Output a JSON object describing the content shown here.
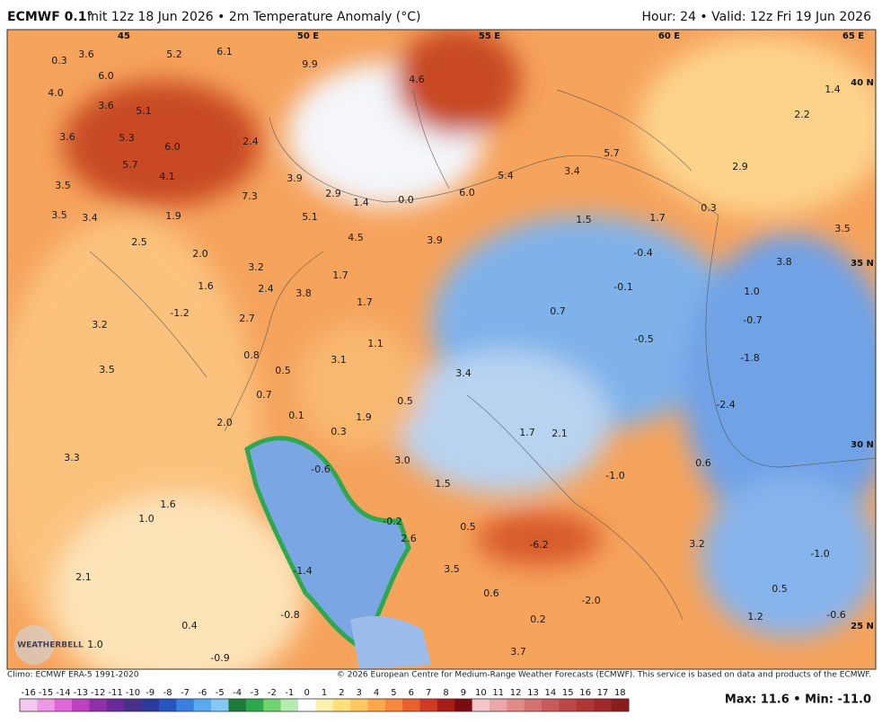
{
  "header": {
    "model": "ECMWF 0.1°",
    "title": "Init 12z 18 Jun 2026 • 2m Temperature Anomaly (°C)",
    "valid": "Hour: 24 • Valid: 12z Fri 19 Jun 2026"
  },
  "map": {
    "grid_labels": [
      "45",
      "50 E",
      "55 E",
      "60 E",
      "65 E",
      "40 N",
      "35 N",
      "30 N",
      "25 N"
    ],
    "values": [
      "0.3",
      "3.6",
      "6.0",
      "4.0",
      "5.2",
      "6.1",
      "9.9",
      "4.6",
      "3.6",
      "5.1",
      "3.6",
      "5.3",
      "6.0",
      "2.4",
      "5.7",
      "4.1",
      "3.5",
      "3.9",
      "2.9",
      "1.4",
      "0.0",
      "6.0",
      "5.4",
      "3.4",
      "5.7",
      "7.3",
      "3.5",
      "3.4",
      "1.9",
      "5.1",
      "4.5",
      "3.9",
      "1.5",
      "1.7",
      "0.3",
      "2.9",
      "2.2",
      "1.4",
      "3.5",
      "2.5",
      "2.0",
      "3.2",
      "1.7",
      "-0.4",
      "3.8",
      "1.6",
      "2.4",
      "3.8",
      "1.7",
      "-0.1",
      "1.0",
      "-1.2",
      "2.7",
      "0.7",
      "-0.7",
      "3.2",
      "1.1",
      "-0.5",
      "0.8",
      "3.1",
      "-1.8",
      "3.5",
      "0.5",
      "3.4",
      "0.7",
      "0.5",
      "-2.4",
      "2.0",
      "0.1",
      "1.9",
      "0.3",
      "1.7",
      "2.1",
      "3.3",
      "3.0",
      "0.6",
      "-0.6",
      "-1.0",
      "1.5",
      "1.6",
      "1.0",
      "-0.2",
      "0.5",
      "2.6",
      "3.2",
      "-6.2",
      "-1.0",
      "3.5",
      "-1.4",
      "2.1",
      "0.6",
      "0.5",
      "-2.0",
      "-0.8",
      "0.2",
      "0.4",
      "1.0",
      "-0.9",
      "3.7",
      "1.2",
      "-0.6"
    ]
  },
  "footer": {
    "climo": "Climo: ECMWF ERA-5 1991-2020",
    "credit": "© 2026 European Centre for Medium-Range Weather Forecasts (ECMWF). This service is based on data and products of the ECMWF.",
    "watermark": "WEATHERBELL"
  },
  "colorbar": {
    "ticks": [
      -16,
      -15,
      -14,
      -13,
      -12,
      -11,
      -10,
      -9,
      -8,
      -7,
      -6,
      -5,
      -4,
      -3,
      -2,
      -1,
      0,
      1,
      2,
      3,
      4,
      5,
      6,
      7,
      8,
      9,
      10,
      11,
      12,
      13,
      14,
      15,
      16,
      17,
      18
    ],
    "colors": [
      "#f6c8f0",
      "#ee99e6",
      "#e066d8",
      "#c040c0",
      "#9030a8",
      "#6a2a9a",
      "#48308a",
      "#2c3a9c",
      "#2456c0",
      "#3a7ee0",
      "#5aa8f0",
      "#86c8f4",
      "#1e7a3a",
      "#2ea84e",
      "#6fd46e",
      "#b6ecb0",
      "#ffffff",
      "#fff2b0",
      "#ffe07a",
      "#ffc860",
      "#ffa84a",
      "#f7883c",
      "#e8602e",
      "#d03a22",
      "#a81c18",
      "#7c0c10",
      "#f4c8c8",
      "#eca8a8",
      "#e08a8a",
      "#d47070",
      "#c85a5a",
      "#bc4646",
      "#b03636",
      "#a02828",
      "#8c1c1c"
    ]
  },
  "stats": "Max: 11.6 • Min: -11.0"
}
